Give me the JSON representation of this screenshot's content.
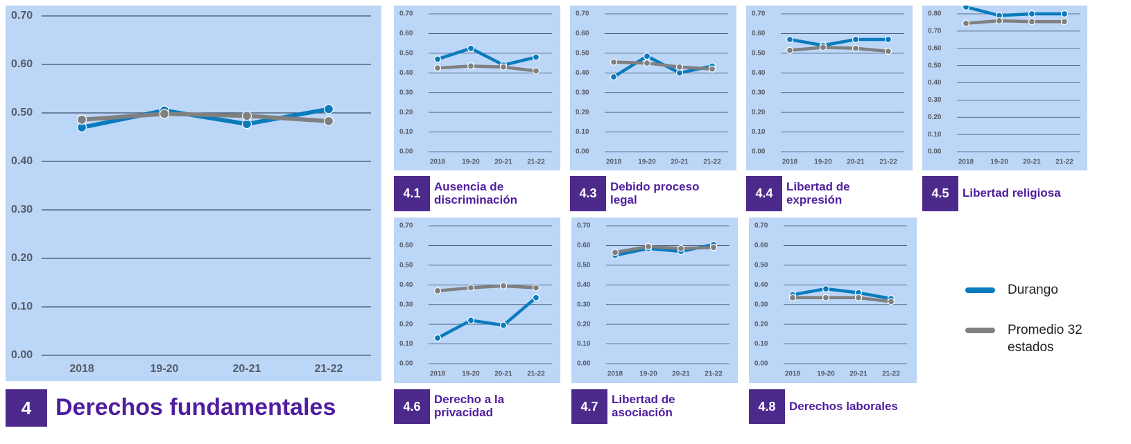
{
  "chart_data": [
    {
      "type": "line",
      "number": "4",
      "title": "Derechos fundamentales",
      "categories": [
        "2018",
        "19-20",
        "20-21",
        "21-22"
      ],
      "series": [
        {
          "name": "Durango",
          "color": "#0a7bbd",
          "values": [
            0.47,
            0.505,
            0.477,
            0.508
          ]
        },
        {
          "name": "Promedio 32 estados",
          "color": "#808080",
          "values": [
            0.486,
            0.498,
            0.494,
            0.483
          ]
        }
      ],
      "ylim": [
        0,
        0.7
      ],
      "yticks": [
        {
          "value": 0,
          "label": "0.00"
        },
        {
          "value": 0.1,
          "label": "0.10"
        },
        {
          "value": 0.2,
          "label": "0.20"
        },
        {
          "value": 0.3,
          "label": "0.30"
        },
        {
          "value": 0.4,
          "label": "0.40"
        },
        {
          "value": 0.5,
          "label": "0.50"
        },
        {
          "value": 0.6,
          "label": "0.60"
        },
        {
          "value": 0.7,
          "label": "0.70"
        }
      ],
      "grid": true
    },
    {
      "type": "line",
      "number": "4.1",
      "title": "Ausencia de discriminación",
      "categories": [
        "2018",
        "19-20",
        "20-21",
        "21-22"
      ],
      "series": [
        {
          "name": "Durango",
          "color": "#0a7bbd",
          "values": [
            0.47,
            0.525,
            0.44,
            0.48
          ]
        },
        {
          "name": "Promedio 32 estados",
          "color": "#808080",
          "values": [
            0.425,
            0.435,
            0.43,
            0.41
          ]
        }
      ],
      "ylim": [
        0,
        0.7
      ],
      "yticks": [
        {
          "value": 0,
          "label": "0.00"
        },
        {
          "value": 0.1,
          "label": "0.10"
        },
        {
          "value": 0.2,
          "label": "0.20"
        },
        {
          "value": 0.3,
          "label": "0.30"
        },
        {
          "value": 0.4,
          "label": "0.40"
        },
        {
          "value": 0.5,
          "label": "0.50"
        },
        {
          "value": 0.6,
          "label": "0.60"
        },
        {
          "value": 0.7,
          "label": "0.70"
        }
      ],
      "grid": true
    },
    {
      "type": "line",
      "number": "4.3",
      "title": "Debido proceso legal",
      "categories": [
        "2018",
        "19-20",
        "20-21",
        "21-22"
      ],
      "series": [
        {
          "name": "Durango",
          "color": "#0a7bbd",
          "values": [
            0.38,
            0.485,
            0.4,
            0.435
          ]
        },
        {
          "name": "Promedio 32 estados",
          "color": "#808080",
          "values": [
            0.455,
            0.45,
            0.43,
            0.42
          ]
        }
      ],
      "ylim": [
        0,
        0.7
      ],
      "yticks": [
        {
          "value": 0,
          "label": "0.00"
        },
        {
          "value": 0.1,
          "label": "0.10"
        },
        {
          "value": 0.2,
          "label": "0.20"
        },
        {
          "value": 0.3,
          "label": "0.30"
        },
        {
          "value": 0.4,
          "label": "0.40"
        },
        {
          "value": 0.5,
          "label": "0.50"
        },
        {
          "value": 0.6,
          "label": "0.60"
        },
        {
          "value": 0.7,
          "label": "0.70"
        }
      ],
      "grid": true
    },
    {
      "type": "line",
      "number": "4.4",
      "title": "Libertad de expresión",
      "categories": [
        "2018",
        "19-20",
        "20-21",
        "21-22"
      ],
      "series": [
        {
          "name": "Durango",
          "color": "#0a7bbd",
          "values": [
            0.57,
            0.54,
            0.57,
            0.57
          ]
        },
        {
          "name": "Promedio 32 estados",
          "color": "#808080",
          "values": [
            0.515,
            0.53,
            0.525,
            0.51
          ]
        }
      ],
      "ylim": [
        0,
        0.7
      ],
      "yticks": [
        {
          "value": 0,
          "label": "0.00"
        },
        {
          "value": 0.1,
          "label": "0.10"
        },
        {
          "value": 0.2,
          "label": "0.20"
        },
        {
          "value": 0.3,
          "label": "0.30"
        },
        {
          "value": 0.4,
          "label": "0.40"
        },
        {
          "value": 0.5,
          "label": "0.50"
        },
        {
          "value": 0.6,
          "label": "0.60"
        },
        {
          "value": 0.7,
          "label": "0.70"
        }
      ],
      "grid": true
    },
    {
      "type": "line",
      "number": "4.5",
      "title": "Libertad religiosa",
      "categories": [
        "2018",
        "19-20",
        "20-21",
        "21-22"
      ],
      "series": [
        {
          "name": "Durango",
          "color": "#0a7bbd",
          "values": [
            0.84,
            0.79,
            0.8,
            0.8
          ]
        },
        {
          "name": "Promedio 32 estados",
          "color": "#808080",
          "values": [
            0.745,
            0.76,
            0.755,
            0.755
          ]
        }
      ],
      "ylim": [
        0,
        0.8
      ],
      "yticks": [
        {
          "value": 0,
          "label": "0.00"
        },
        {
          "value": 0.1,
          "label": "0.10"
        },
        {
          "value": 0.2,
          "label": "0.20"
        },
        {
          "value": 0.3,
          "label": "0.30"
        },
        {
          "value": 0.4,
          "label": "0.40"
        },
        {
          "value": 0.5,
          "label": "0.50"
        },
        {
          "value": 0.6,
          "label": "0.60"
        },
        {
          "value": 0.7,
          "label": "0.70"
        },
        {
          "value": 0.8,
          "label": "0.80"
        }
      ],
      "grid": true
    },
    {
      "type": "line",
      "number": "4.6",
      "title": "Derecho a la privacidad",
      "categories": [
        "2018",
        "19-20",
        "20-21",
        "21-22"
      ],
      "series": [
        {
          "name": "Durango",
          "color": "#0a7bbd",
          "values": [
            0.13,
            0.22,
            0.195,
            0.335
          ]
        },
        {
          "name": "Promedio 32 estados",
          "color": "#808080",
          "values": [
            0.37,
            0.385,
            0.395,
            0.385
          ]
        }
      ],
      "ylim": [
        0,
        0.7
      ],
      "yticks": [
        {
          "value": 0,
          "label": "0.00"
        },
        {
          "value": 0.1,
          "label": "0.10"
        },
        {
          "value": 0.2,
          "label": "0.20"
        },
        {
          "value": 0.3,
          "label": "0.30"
        },
        {
          "value": 0.4,
          "label": "0.40"
        },
        {
          "value": 0.5,
          "label": "0.50"
        },
        {
          "value": 0.6,
          "label": "0.60"
        },
        {
          "value": 0.7,
          "label": "0.70"
        }
      ],
      "grid": true
    },
    {
      "type": "line",
      "number": "4.7",
      "title": "Libertad de asociación",
      "categories": [
        "2018",
        "19-20",
        "20-21",
        "21-22"
      ],
      "series": [
        {
          "name": "Durango",
          "color": "#0a7bbd",
          "values": [
            0.55,
            0.585,
            0.57,
            0.605
          ]
        },
        {
          "name": "Promedio 32 estados",
          "color": "#808080",
          "values": [
            0.565,
            0.595,
            0.585,
            0.59
          ]
        }
      ],
      "ylim": [
        0,
        0.7
      ],
      "yticks": [
        {
          "value": 0,
          "label": "0.00"
        },
        {
          "value": 0.1,
          "label": "0.10"
        },
        {
          "value": 0.2,
          "label": "0.20"
        },
        {
          "value": 0.3,
          "label": "0.30"
        },
        {
          "value": 0.4,
          "label": "0.40"
        },
        {
          "value": 0.5,
          "label": "0.50"
        },
        {
          "value": 0.6,
          "label": "0.60"
        },
        {
          "value": 0.7,
          "label": "0.70"
        }
      ],
      "grid": true
    },
    {
      "type": "line",
      "number": "4.8",
      "title": "Derechos laborales",
      "categories": [
        "2018",
        "19-20",
        "20-21",
        "21-22"
      ],
      "series": [
        {
          "name": "Durango",
          "color": "#0a7bbd",
          "values": [
            0.35,
            0.38,
            0.36,
            0.33
          ]
        },
        {
          "name": "Promedio 32 estados",
          "color": "#808080",
          "values": [
            0.335,
            0.335,
            0.335,
            0.315
          ]
        }
      ],
      "ylim": [
        0,
        0.7
      ],
      "yticks": [
        {
          "value": 0,
          "label": "0.00"
        },
        {
          "value": 0.1,
          "label": "0.10"
        },
        {
          "value": 0.2,
          "label": "0.20"
        },
        {
          "value": 0.3,
          "label": "0.30"
        },
        {
          "value": 0.4,
          "label": "0.40"
        },
        {
          "value": 0.5,
          "label": "0.50"
        },
        {
          "value": 0.6,
          "label": "0.60"
        },
        {
          "value": 0.7,
          "label": "0.70"
        }
      ],
      "grid": true
    }
  ]
}
